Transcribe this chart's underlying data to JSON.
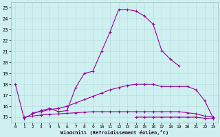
{
  "bg_color": "#cff0f0",
  "grid_color": "#b8e0e0",
  "line_color": "#990099",
  "xlabel": "Windchill (Refroidissement éolien,°C)",
  "x_ticks": [
    0,
    1,
    2,
    3,
    4,
    5,
    6,
    7,
    8,
    9,
    10,
    11,
    12,
    13,
    14,
    15,
    16,
    17,
    18,
    19,
    20,
    21,
    22,
    23
  ],
  "y_ticks": [
    15,
    16,
    17,
    18,
    19,
    20,
    21,
    22,
    23,
    24,
    25
  ],
  "ylim": [
    14.5,
    25.5
  ],
  "xlim": [
    -0.5,
    23.5
  ],
  "curve1_x": [
    0,
    1,
    2,
    3,
    4,
    5,
    6,
    7,
    8,
    9,
    10,
    11,
    12,
    13,
    14,
    15,
    16,
    17,
    18,
    19
  ],
  "curve1_y": [
    18.0,
    14.9,
    15.3,
    15.6,
    15.8,
    15.5,
    15.6,
    17.7,
    19.0,
    19.2,
    21.0,
    22.8,
    24.85,
    24.85,
    24.7,
    24.25,
    23.5,
    21.1,
    20.3,
    19.7
  ],
  "curve2_x": [
    2,
    3,
    4,
    5,
    6,
    7,
    8,
    9,
    10,
    11,
    12,
    13,
    14,
    15,
    16,
    17,
    18,
    19,
    20,
    21,
    22,
    23
  ],
  "curve2_y": [
    15.4,
    15.5,
    15.7,
    15.8,
    16.0,
    16.3,
    16.6,
    16.9,
    17.2,
    17.5,
    17.7,
    17.9,
    18.0,
    18.0,
    18.0,
    17.8,
    17.8,
    17.8,
    17.8,
    17.5,
    16.5,
    14.9
  ],
  "curve3_x": [
    1,
    2,
    3,
    4,
    5,
    6,
    7,
    8,
    9,
    10,
    11,
    12,
    13,
    14,
    15,
    16,
    17,
    18,
    19,
    20,
    21,
    22,
    23
  ],
  "curve3_y": [
    15.0,
    15.1,
    15.2,
    15.25,
    15.3,
    15.35,
    15.4,
    15.45,
    15.5,
    15.5,
    15.5,
    15.5,
    15.5,
    15.5,
    15.5,
    15.5,
    15.5,
    15.5,
    15.5,
    15.4,
    15.3,
    15.1,
    15.0
  ],
  "curve4_x": [
    14,
    15,
    16,
    17,
    18,
    19,
    20,
    21,
    22,
    23
  ],
  "curve4_y": [
    15.0,
    15.0,
    15.0,
    15.0,
    15.0,
    15.0,
    15.0,
    15.0,
    14.9,
    14.9
  ]
}
